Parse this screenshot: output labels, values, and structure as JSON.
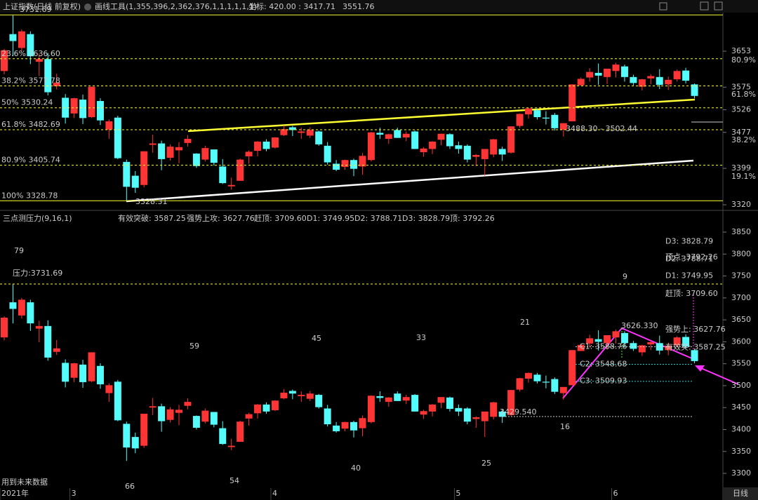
{
  "chart_data": {
    "type": "candlestick",
    "up_color": "#ff3434",
    "down_color": "#54fcfc",
    "series": [
      {
        "name": "上证指数(日线 前复权)",
        "ohlc": [
          [
            3610,
            3658,
            3603,
            3655
          ],
          [
            3690,
            3731.69,
            3642,
            3675
          ],
          [
            3660,
            3700,
            3653,
            3696
          ],
          [
            3690,
            3696,
            3625,
            3642
          ],
          [
            3630,
            3648,
            3599,
            3636
          ],
          [
            3636,
            3649,
            3557,
            3564
          ],
          [
            3577,
            3604,
            3570,
            3585
          ],
          [
            3552,
            3560,
            3496,
            3509
          ],
          [
            3518,
            3552,
            3508,
            3551
          ],
          [
            3548,
            3559,
            3495,
            3508
          ],
          [
            3510,
            3576,
            3508,
            3576
          ],
          [
            3545,
            3551,
            3493,
            3503
          ],
          [
            3483,
            3505,
            3463,
            3501
          ],
          [
            3509,
            3513,
            3419,
            3421
          ],
          [
            3413,
            3418,
            3328.31,
            3359
          ],
          [
            3383,
            3393,
            3346,
            3357
          ],
          [
            3363,
            3436,
            3358,
            3436
          ],
          [
            3450,
            3472,
            3433,
            3453
          ],
          [
            3453,
            3459,
            3395,
            3419
          ],
          [
            3422,
            3451,
            3416,
            3446
          ],
          [
            3438,
            3456,
            3410,
            3445
          ],
          [
            3454,
            3471,
            3446,
            3463
          ],
          [
            3431,
            3432,
            3400,
            3404
          ],
          [
            3418,
            3448,
            3414,
            3443
          ],
          [
            3440,
            3440,
            3405,
            3411
          ],
          [
            3403,
            3419,
            3365,
            3367
          ],
          [
            3360,
            3379,
            3353,
            3363
          ],
          [
            3372,
            3420,
            3372,
            3418
          ],
          [
            3425,
            3438,
            3409,
            3435
          ],
          [
            3437,
            3458,
            3425,
            3457
          ],
          [
            3457,
            3462,
            3436,
            3441
          ],
          [
            3444,
            3467,
            3442,
            3466
          ],
          [
            3471,
            3492,
            3469,
            3484
          ],
          [
            3488,
            3491,
            3469,
            3482
          ],
          [
            3476,
            3487,
            3463,
            3479
          ],
          [
            3470,
            3488,
            3465,
            3482
          ],
          [
            3479,
            3481,
            3448,
            3451
          ],
          [
            3448,
            3456,
            3407,
            3412
          ],
          [
            3409,
            3417,
            3393,
            3396
          ],
          [
            3402,
            3418,
            3396,
            3417
          ],
          [
            3417,
            3420,
            3382,
            3398
          ],
          [
            3403,
            3432,
            3385,
            3426
          ],
          [
            3417,
            3478,
            3414,
            3477
          ],
          [
            3476,
            3487,
            3463,
            3472
          ],
          [
            3463,
            3474,
            3452,
            3473
          ],
          [
            3482,
            3487,
            3465,
            3465
          ],
          [
            3466,
            3479,
            3458,
            3474
          ],
          [
            3479,
            3481,
            3441,
            3441
          ],
          [
            3434,
            3445,
            3424,
            3442
          ],
          [
            3441,
            3458,
            3430,
            3457
          ],
          [
            3461,
            3474,
            3449,
            3474
          ],
          [
            3473,
            3475,
            3441,
            3447
          ],
          [
            3449,
            3457,
            3431,
            3441
          ],
          [
            3448,
            3451,
            3412,
            3418
          ],
          [
            3424,
            3430,
            3404,
            3428
          ],
          [
            3419,
            3441,
            3383,
            3441
          ],
          [
            3429,
            3463,
            3423,
            3462
          ],
          [
            3441,
            3446,
            3415,
            3429
          ],
          [
            3433,
            3490,
            3431,
            3490
          ],
          [
            3491,
            3518,
            3487,
            3517
          ],
          [
            3516,
            3530,
            3507,
            3529
          ],
          [
            3525,
            3529,
            3505,
            3510
          ],
          [
            3509,
            3523,
            3494,
            3507
          ],
          [
            3515,
            3519,
            3481,
            3486
          ],
          [
            3483,
            3497,
            3468,
            3497
          ],
          [
            3501,
            3581,
            3501,
            3581
          ],
          [
            3579,
            3596,
            3579,
            3593
          ],
          [
            3596,
            3616,
            3587,
            3608
          ],
          [
            3606,
            3626.33,
            3580,
            3600
          ],
          [
            3597,
            3615,
            3582,
            3615
          ],
          [
            3610,
            3628,
            3596,
            3624
          ],
          [
            3620,
            3624,
            3587,
            3597
          ],
          [
            3597,
            3602,
            3579,
            3584
          ],
          [
            3576,
            3593,
            3568,
            3592
          ],
          [
            3594,
            3603,
            3581,
            3599
          ],
          [
            3597,
            3614,
            3571,
            3580
          ],
          [
            3581,
            3598,
            3569,
            3591
          ],
          [
            3592,
            3613,
            3587,
            3610
          ],
          [
            3611,
            3617,
            3583,
            3589
          ],
          [
            3581,
            3583,
            3551,
            3556
          ]
        ]
      }
    ],
    "categories": [
      "2021年",
      null,
      null,
      null,
      null,
      null,
      null,
      null,
      "3",
      null,
      null,
      null,
      null,
      null,
      null,
      null,
      null,
      null,
      null,
      null,
      null,
      null,
      null,
      null,
      null,
      null,
      null,
      null,
      null,
      null,
      null,
      "4",
      null,
      null,
      null,
      null,
      null,
      null,
      null,
      null,
      null,
      null,
      null,
      null,
      null,
      null,
      null,
      null,
      null,
      null,
      null,
      null,
      "5",
      null,
      null,
      null,
      null,
      null,
      null,
      null,
      null,
      null,
      null,
      null,
      null,
      null,
      null,
      null,
      null,
      null,
      "6",
      null,
      null,
      null,
      null,
      null,
      null,
      null,
      null,
      null
    ],
    "period": "日线",
    "panes": [
      {
        "tool": "画线工具(1,355,396,2,362,376,1,1,1,1,1,1)",
        "cursor": "坐标: 420.00 : 3417.71",
        "cursor_price": "3551.76",
        "ylim": [
          3315.5,
          3736.6
        ],
        "yticks": [
          3653,
          3575,
          3526,
          3477,
          3399,
          3320
        ],
        "right_labels": [
          "80.9%",
          "61.8%",
          "38.2%",
          "19.1%"
        ],
        "fib_levels": [
          {
            "label": "3731.69",
            "value": 3731.69
          },
          {
            "label": "23.6% 3636.60",
            "value": 3636.6
          },
          {
            "label": "38.2% 3577.78",
            "value": 3577.78
          },
          {
            "label": "50% 3530.24",
            "value": 3530.24
          },
          {
            "label": "61.8% 3482.69",
            "value": 3482.69
          },
          {
            "label": "80.9% 3405.74",
            "value": 3405.74
          },
          {
            "label": "100% 3328.78",
            "value": 3328.78
          }
        ],
        "annotations": [
          "3488.30 - 3502.44",
          "3328.31"
        ]
      },
      {
        "title": "三点测压力(9,16,1)",
        "header_values": [
          "有效突破: 3587.25",
          "强势上攻: 3627.76",
          "赶顶: 3709.60",
          "D1: 3749.95",
          "D2: 3788.71",
          "D3: 3828.79",
          "顶: 3792.26"
        ],
        "ylim": [
          3268.1,
          3867.6
        ],
        "yticks": [
          3850,
          3800,
          3750,
          3700,
          3650,
          3600,
          3550,
          3500,
          3450,
          3400,
          3350,
          3300
        ],
        "pressure": {
          "label": "压力:3731.69",
          "value": 3731.69
        },
        "levels": [
          {
            "label": "D3: 3828.79",
            "value": 3828.79
          },
          {
            "label": "顶点: 3792.26",
            "value": 3792.26
          },
          {
            "label": "D2: 3788.71",
            "value": 3788.71
          },
          {
            "label": "D1: 3749.95",
            "value": 3749.95
          },
          {
            "label": "赶顶: 3709.60",
            "value": 3709.6
          },
          {
            "label": "强势上: 3627.76",
            "value": 3627.76
          },
          {
            "label": "有效突: 3587.25",
            "value": 3587.25
          }
        ],
        "c_levels": [
          {
            "label": "C1: 3588.76",
            "value": 3588.76
          },
          {
            "label": "C2: 3548.68",
            "value": 3548.68
          },
          {
            "label": "C3: 3509.93",
            "value": 3509.93
          }
        ],
        "swing_labels": [
          {
            "label": "3626.330",
            "value": 3626.33
          },
          {
            "label": "3429.540",
            "value": 3429.54
          }
        ],
        "up_counts": [
          79,
          59,
          45,
          33,
          21,
          9
        ],
        "down_counts": [
          66,
          54,
          40,
          25,
          16
        ],
        "note": "用到未来数据"
      }
    ]
  }
}
